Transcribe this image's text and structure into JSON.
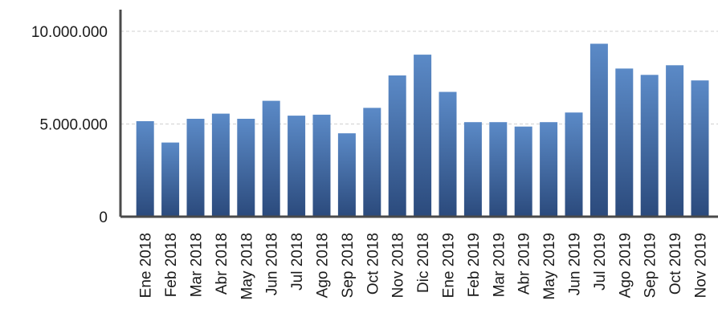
{
  "chart_data": {
    "type": "bar",
    "title": "",
    "xlabel": "",
    "ylabel": "",
    "categories": [
      "Ene 2018",
      "Feb 2018",
      "Mar 2018",
      "Abr 2018",
      "May 2018",
      "Jun 2018",
      "Jul 2018",
      "Ago 2018",
      "Sep 2018",
      "Oct 2018",
      "Nov 2018",
      "Dic 2018",
      "Ene 2019",
      "Feb 2019",
      "Mar 2019",
      "Abr 2019",
      "May 2019",
      "Jun 2019",
      "Jul 2019",
      "Ago 2019",
      "Sep 2019",
      "Oct 2019",
      "Nov 2019"
    ],
    "values": [
      5150000,
      4000000,
      5280000,
      5560000,
      5280000,
      6250000,
      5450000,
      5500000,
      4500000,
      5870000,
      7620000,
      8740000,
      6730000,
      5100000,
      5100000,
      4860000,
      5100000,
      5620000,
      9330000,
      7990000,
      7650000,
      8170000,
      7350000
    ],
    "ylim": [
      0,
      10000000
    ],
    "yticks": [
      0,
      5000000,
      10000000
    ],
    "ytick_labels": [
      "0",
      "5.000.000",
      "10.000.000"
    ],
    "grid": true,
    "legend": "none",
    "colors": {
      "bar_top": "#5b8ac7",
      "bar_bottom": "#2b4a7c",
      "axis": "#4a4a4a",
      "grid": "#d0d0d0",
      "text": "#1a1a1a"
    }
  }
}
